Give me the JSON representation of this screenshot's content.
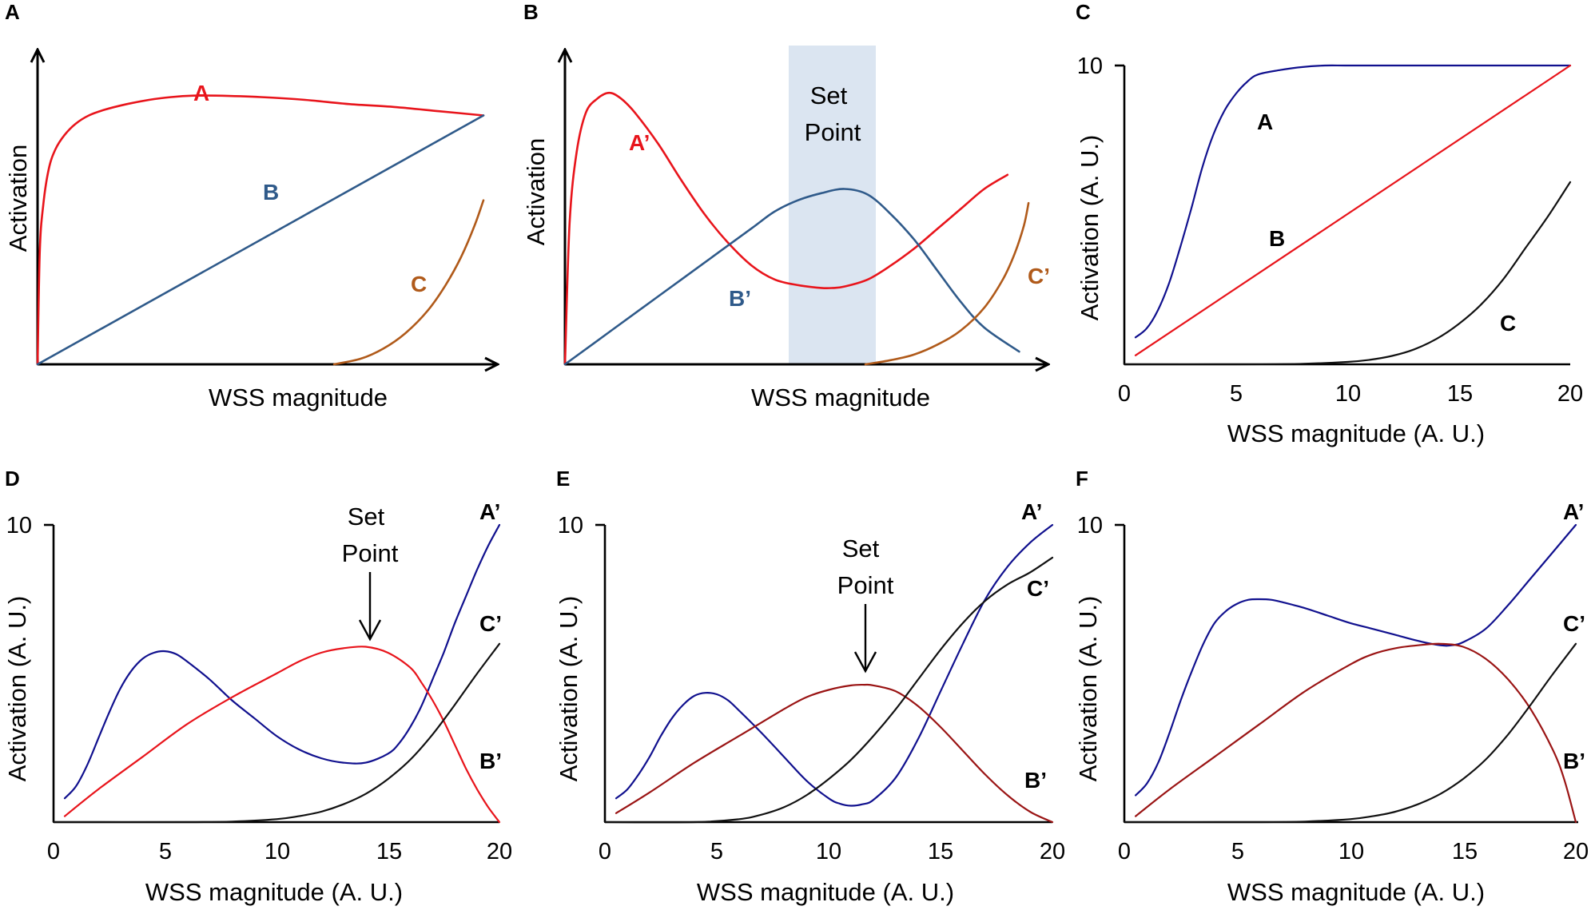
{
  "colors": {
    "red": "#e8141b",
    "steel_blue": "#2f5a8a",
    "brown": "#b05a1a",
    "navy": "#10108e",
    "black": "#111111",
    "dark_red": "#9a1414",
    "set_point_band": "#dbe5f1"
  },
  "chart_data": [
    {
      "panel": "A",
      "type": "line",
      "schematic": true,
      "xlabel": "WSS magnitude",
      "ylabel": "Activation",
      "xlim": [
        0,
        20
      ],
      "ylim": [
        0,
        10
      ],
      "series": [
        {
          "name": "A",
          "color": "red",
          "x": [
            0,
            0.1,
            0.25,
            0.5,
            0.8,
            1.2,
            1.7,
            2.3,
            3,
            4,
            5,
            6,
            7,
            8,
            10,
            12,
            14,
            16,
            18,
            20
          ],
          "y": [
            0,
            4.0,
            5.6,
            6.9,
            7.6,
            8.1,
            8.5,
            8.8,
            9.0,
            9.2,
            9.35,
            9.45,
            9.5,
            9.5,
            9.45,
            9.35,
            9.2,
            9.1,
            8.95,
            8.8
          ]
        },
        {
          "name": "B",
          "color": "steel_blue",
          "x": [
            0,
            20
          ],
          "y": [
            0,
            8.8
          ]
        },
        {
          "name": "C",
          "color": "brown",
          "x": [
            13.3,
            14.5,
            15.5,
            16.5,
            17.5,
            18.3,
            19,
            19.6,
            20
          ],
          "y": [
            0,
            0.2,
            0.55,
            1.1,
            1.9,
            2.8,
            3.8,
            4.9,
            5.8
          ]
        }
      ],
      "labels": {
        "A": "A",
        "B": "B",
        "C": "C"
      }
    },
    {
      "panel": "B",
      "type": "line",
      "schematic": true,
      "xlabel": "WSS magnitude",
      "ylabel": "Activation",
      "xlim": [
        0,
        20
      ],
      "ylim": [
        0,
        10
      ],
      "annotation": {
        "text_line1": "Set",
        "text_line2": "Point",
        "band_x": [
          9.6,
          13.4
        ],
        "band_top": 10.8
      },
      "series": [
        {
          "name": "A'",
          "color": "red",
          "x": [
            0,
            0.2,
            0.5,
            0.9,
            1.4,
            1.9,
            2.4,
            3,
            4,
            5,
            6,
            7,
            8,
            9,
            10,
            11,
            11.5,
            12,
            13,
            14,
            15,
            16,
            17,
            18,
            19
          ],
          "y": [
            0,
            5.0,
            7.5,
            8.9,
            9.4,
            9.6,
            9.4,
            8.9,
            7.8,
            6.5,
            5.3,
            4.3,
            3.5,
            3.0,
            2.8,
            2.7,
            2.7,
            2.75,
            3.0,
            3.5,
            4.1,
            4.8,
            5.5,
            6.2,
            6.7
          ]
        },
        {
          "name": "B'",
          "color": "steel_blue",
          "x": [
            0,
            2,
            4,
            6,
            8,
            9,
            10,
            11,
            12,
            13,
            14,
            15,
            16,
            17,
            18,
            19.5
          ],
          "y": [
            0,
            1.2,
            2.4,
            3.6,
            4.8,
            5.4,
            5.8,
            6.05,
            6.2,
            6.0,
            5.3,
            4.4,
            3.3,
            2.2,
            1.3,
            0.45
          ]
        },
        {
          "name": "C'",
          "color": "brown",
          "x": [
            12.9,
            14,
            15,
            16,
            17,
            18,
            18.8,
            19.3,
            19.7,
            19.9
          ],
          "y": [
            0,
            0.15,
            0.35,
            0.7,
            1.2,
            2.0,
            3.0,
            3.9,
            4.9,
            5.7
          ]
        }
      ],
      "labels": {
        "A_prime": "A’",
        "B_prime": "B’",
        "C_prime": "C’"
      }
    },
    {
      "panel": "C",
      "type": "line",
      "xlabel": "WSS magnitude  (A. U.)",
      "ylabel": "Activation (A. U.)",
      "xlim": [
        0,
        20
      ],
      "ylim": [
        0,
        10
      ],
      "xticks": [
        0,
        5,
        10,
        15,
        20
      ],
      "yticks": [
        10
      ],
      "series": [
        {
          "name": "A",
          "color": "navy",
          "x": [
            0.5,
            1,
            1.5,
            2,
            2.5,
            3,
            3.5,
            4,
            4.5,
            5,
            5.5,
            6,
            7,
            8,
            9,
            10,
            12,
            14,
            16,
            18,
            20
          ],
          "y": [
            0.9,
            1.2,
            1.8,
            2.7,
            3.9,
            5.2,
            6.6,
            7.7,
            8.5,
            9.05,
            9.45,
            9.7,
            9.85,
            9.95,
            10,
            10,
            10,
            10,
            10,
            10,
            10
          ]
        },
        {
          "name": "B",
          "color": "red",
          "x": [
            0.5,
            20
          ],
          "y": [
            0.3,
            10
          ]
        },
        {
          "name": "C",
          "color": "black",
          "x": [
            0,
            5,
            8,
            10,
            11,
            12,
            13,
            14,
            15,
            16,
            17,
            18,
            19,
            20
          ],
          "y": [
            0,
            0,
            0.02,
            0.08,
            0.15,
            0.28,
            0.5,
            0.85,
            1.35,
            2.0,
            2.85,
            3.9,
            4.95,
            6.1
          ]
        }
      ],
      "labels": {
        "A": "A",
        "B": "B",
        "C": "C"
      }
    },
    {
      "panel": "D",
      "type": "line",
      "xlabel": "WSS magnitude  (A. U.)",
      "ylabel": "Activation (A. U.)",
      "xlim": [
        0,
        20
      ],
      "ylim": [
        0,
        10
      ],
      "xticks": [
        0,
        5,
        10,
        15,
        20
      ],
      "yticks": [
        10
      ],
      "annotation": {
        "text_line1": "Set",
        "text_line2": "Point",
        "x": 14
      },
      "series": [
        {
          "name": "A'",
          "color": "navy",
          "x": [
            0.5,
            1,
            1.5,
            2,
            2.5,
            3,
            3.5,
            4,
            4.5,
            5,
            5.5,
            6,
            7,
            8,
            9,
            10,
            11,
            12,
            13,
            14,
            15,
            15.5,
            16,
            16.5,
            17,
            17.5,
            18,
            18.5,
            19,
            19.5,
            20
          ],
          "y": [
            0.8,
            1.2,
            1.9,
            2.8,
            3.7,
            4.5,
            5.1,
            5.5,
            5.7,
            5.75,
            5.65,
            5.4,
            4.8,
            4.1,
            3.5,
            2.9,
            2.45,
            2.15,
            2.0,
            2.0,
            2.3,
            2.65,
            3.2,
            3.9,
            4.8,
            5.7,
            6.7,
            7.6,
            8.5,
            9.3,
            10
          ]
        },
        {
          "name": "B'",
          "color": "red",
          "x": [
            0.5,
            2,
            4,
            6,
            8,
            10,
            11,
            12,
            13,
            14,
            15,
            16,
            16.5,
            17,
            17.5,
            18,
            18.5,
            19,
            19.5,
            20
          ],
          "y": [
            0.2,
            1.1,
            2.2,
            3.3,
            4.2,
            5.0,
            5.4,
            5.7,
            5.85,
            5.9,
            5.7,
            5.2,
            4.7,
            4.1,
            3.4,
            2.6,
            1.8,
            1.1,
            0.5,
            0
          ]
        },
        {
          "name": "C'",
          "color": "black",
          "x": [
            0,
            6,
            8,
            10,
            11,
            12,
            13,
            14,
            15,
            16,
            17,
            18,
            19,
            20
          ],
          "y": [
            0,
            0,
            0.02,
            0.1,
            0.2,
            0.35,
            0.6,
            0.95,
            1.45,
            2.1,
            2.95,
            3.95,
            5.0,
            6.0
          ]
        }
      ],
      "labels": {
        "A_prime": "A’",
        "B_prime": "B’",
        "C_prime": "C’"
      }
    },
    {
      "panel": "E",
      "type": "line",
      "xlabel": "WSS magnitude  (A. U.)",
      "ylabel": "Activation (A. U.)",
      "xlim": [
        0,
        20
      ],
      "ylim": [
        0,
        10
      ],
      "xticks": [
        0,
        5,
        10,
        15,
        20
      ],
      "yticks": [
        10
      ],
      "annotation": {
        "text_line1": "Set",
        "text_line2": "Point",
        "x": 11.6
      },
      "series": [
        {
          "name": "A'",
          "color": "navy",
          "x": [
            0.5,
            1,
            1.5,
            2,
            2.5,
            3,
            3.5,
            4,
            4.5,
            5,
            5.5,
            6,
            7,
            8,
            9,
            10,
            10.5,
            11,
            11.5,
            12,
            13,
            14,
            15,
            16,
            17,
            18,
            19,
            20
          ],
          "y": [
            0.8,
            1.1,
            1.6,
            2.2,
            2.9,
            3.5,
            3.95,
            4.25,
            4.35,
            4.3,
            4.1,
            3.75,
            3.0,
            2.2,
            1.4,
            0.8,
            0.62,
            0.55,
            0.6,
            0.75,
            1.5,
            2.8,
            4.4,
            6.0,
            7.5,
            8.6,
            9.4,
            10
          ]
        },
        {
          "name": "B'",
          "color": "dark_red",
          "x": [
            0.5,
            2,
            4,
            6,
            8,
            9,
            10,
            11,
            11.6,
            12,
            13,
            14,
            15,
            16,
            17,
            18,
            19,
            20
          ],
          "y": [
            0.3,
            1.0,
            2.0,
            2.9,
            3.8,
            4.2,
            4.45,
            4.6,
            4.62,
            4.6,
            4.4,
            3.9,
            3.2,
            2.4,
            1.6,
            0.9,
            0.35,
            0
          ]
        },
        {
          "name": "C'",
          "color": "black",
          "x": [
            0,
            4,
            6,
            7,
            8,
            9,
            10,
            11,
            12,
            13,
            14,
            15,
            16,
            17,
            18,
            19,
            20
          ],
          "y": [
            0,
            0,
            0.1,
            0.25,
            0.5,
            0.9,
            1.45,
            2.1,
            2.9,
            3.8,
            4.8,
            5.8,
            6.7,
            7.45,
            8.0,
            8.4,
            8.9
          ]
        }
      ],
      "labels": {
        "A_prime": "A’",
        "B_prime": "B’",
        "C_prime": "C’"
      }
    },
    {
      "panel": "F",
      "type": "line",
      "xlabel": "WSS magnitude  (A. U.)",
      "ylabel": "Activation (A. U.)",
      "xlim": [
        0,
        20
      ],
      "ylim": [
        0,
        10
      ],
      "xticks": [
        0,
        5,
        10,
        15,
        20
      ],
      "yticks": [
        10
      ],
      "series": [
        {
          "name": "A'",
          "color": "navy",
          "x": [
            0.5,
            1,
            1.5,
            2,
            2.5,
            3,
            3.5,
            4,
            4.5,
            5,
            5.5,
            6,
            6.5,
            7,
            8,
            9,
            10,
            11,
            12,
            13,
            14,
            14.5,
            15,
            16,
            17,
            18,
            19,
            20
          ],
          "y": [
            0.9,
            1.3,
            2.0,
            3.0,
            4.1,
            5.1,
            6.0,
            6.7,
            7.1,
            7.35,
            7.48,
            7.5,
            7.48,
            7.4,
            7.2,
            6.95,
            6.7,
            6.5,
            6.3,
            6.1,
            5.95,
            5.95,
            6.05,
            6.5,
            7.3,
            8.2,
            9.1,
            10
          ]
        },
        {
          "name": "B'",
          "color": "dark_red",
          "x": [
            0.5,
            2,
            4,
            6,
            8,
            10,
            11,
            12,
            13,
            14,
            15,
            16,
            17,
            18,
            19,
            19.5,
            20
          ],
          "y": [
            0.2,
            1.1,
            2.2,
            3.3,
            4.4,
            5.3,
            5.65,
            5.85,
            5.95,
            6.0,
            5.9,
            5.5,
            4.8,
            3.8,
            2.4,
            1.4,
            0
          ]
        },
        {
          "name": "C'",
          "color": "black",
          "x": [
            0,
            6,
            8,
            10,
            11,
            12,
            13,
            14,
            15,
            16,
            17,
            18,
            19,
            20
          ],
          "y": [
            0,
            0,
            0.02,
            0.1,
            0.2,
            0.35,
            0.6,
            0.95,
            1.45,
            2.1,
            2.95,
            3.95,
            5.0,
            6.0
          ]
        }
      ],
      "labels": {
        "A_prime": "A’",
        "B_prime": "B’",
        "C_prime": "C’"
      }
    }
  ]
}
